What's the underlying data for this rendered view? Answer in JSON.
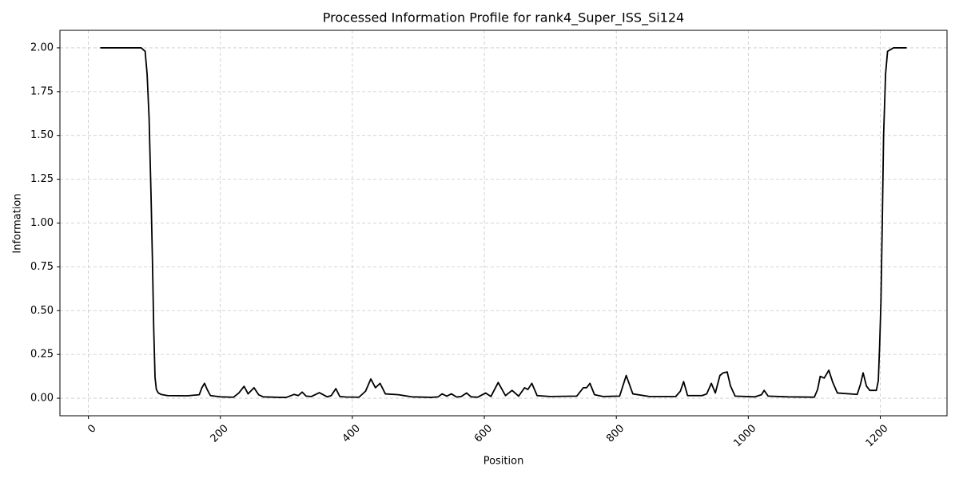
{
  "chart_data": {
    "type": "line",
    "title": "Processed Information Profile for rank4_Super_ISS_Si124",
    "x_label": "Position",
    "y_label": "Information",
    "x": [
      18,
      40,
      60,
      80,
      86,
      89,
      92,
      95,
      97,
      99,
      101,
      103,
      106,
      110,
      120,
      150,
      168,
      172,
      176,
      180,
      185,
      200,
      220,
      228,
      236,
      242,
      251,
      258,
      265,
      290,
      300,
      312,
      318,
      324,
      330,
      338,
      350,
      362,
      368,
      375,
      381,
      390,
      410,
      420,
      428,
      435,
      442,
      450,
      470,
      490,
      520,
      530,
      536,
      543,
      550,
      558,
      565,
      573,
      580,
      590,
      602,
      610,
      621,
      632,
      642,
      652,
      661,
      666,
      672,
      680,
      700,
      740,
      750,
      755,
      760,
      767,
      780,
      805,
      815,
      825,
      850,
      890,
      897,
      902,
      908,
      930,
      937,
      944,
      950,
      957,
      962,
      968,
      973,
      980,
      1010,
      1020,
      1024,
      1030,
      1060,
      1100,
      1105,
      1109,
      1115,
      1122,
      1128,
      1135,
      1165,
      1170,
      1174,
      1179,
      1184,
      1194,
      1197,
      1199,
      1201,
      1203,
      1205,
      1208,
      1211,
      1220,
      1240
    ],
    "series": [
      {
        "name": "Information",
        "color": "#000000",
        "values": [
          2.0,
          2.0,
          2.0,
          2.0,
          1.98,
          1.85,
          1.6,
          1.15,
          0.8,
          0.4,
          0.12,
          0.05,
          0.03,
          0.022,
          0.015,
          0.014,
          0.02,
          0.06,
          0.085,
          0.05,
          0.015,
          0.008,
          0.006,
          0.03,
          0.068,
          0.025,
          0.06,
          0.02,
          0.008,
          0.005,
          0.005,
          0.022,
          0.015,
          0.035,
          0.012,
          0.01,
          0.032,
          0.008,
          0.015,
          0.055,
          0.01,
          0.007,
          0.006,
          0.04,
          0.11,
          0.06,
          0.085,
          0.025,
          0.02,
          0.008,
          0.005,
          0.008,
          0.025,
          0.012,
          0.025,
          0.007,
          0.01,
          0.03,
          0.008,
          0.006,
          0.03,
          0.01,
          0.09,
          0.015,
          0.045,
          0.012,
          0.06,
          0.05,
          0.085,
          0.015,
          0.01,
          0.012,
          0.06,
          0.06,
          0.085,
          0.02,
          0.01,
          0.012,
          0.13,
          0.025,
          0.01,
          0.01,
          0.04,
          0.095,
          0.015,
          0.015,
          0.025,
          0.085,
          0.03,
          0.13,
          0.145,
          0.15,
          0.07,
          0.012,
          0.008,
          0.02,
          0.045,
          0.012,
          0.008,
          0.006,
          0.05,
          0.125,
          0.115,
          0.16,
          0.09,
          0.03,
          0.022,
          0.08,
          0.145,
          0.07,
          0.045,
          0.045,
          0.1,
          0.3,
          0.55,
          1.0,
          1.5,
          1.85,
          1.98,
          2.0,
          2.0
        ]
      }
    ],
    "xlim": [
      -43.1,
      1301.1
    ],
    "ylim": [
      -0.1,
      2.1
    ],
    "xticks": [
      0,
      200,
      400,
      600,
      800,
      1000,
      1200
    ],
    "yticks": [
      {
        "value": 0,
        "label": "0.00"
      },
      {
        "value": 0.25,
        "label": "0.25"
      },
      {
        "value": 0.5,
        "label": "0.50"
      },
      {
        "value": 0.75,
        "label": "0.75"
      },
      {
        "value": 1,
        "label": "1.00"
      },
      {
        "value": 1.25,
        "label": "1.25"
      },
      {
        "value": 1.5,
        "label": "1.50"
      },
      {
        "value": 1.75,
        "label": "1.75"
      },
      {
        "value": 2,
        "label": "2.00"
      }
    ],
    "grid": true
  }
}
